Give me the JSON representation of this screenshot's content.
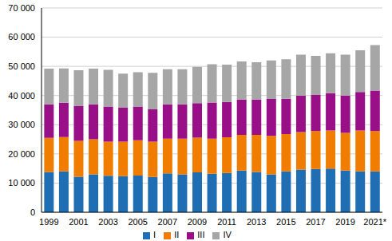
{
  "chart_data": {
    "type": "bar",
    "stacked": true,
    "grid": true,
    "legend": "bottom",
    "categories": [
      "1999",
      null,
      "2001",
      null,
      "2003",
      null,
      "2005",
      null,
      "2007",
      null,
      "2009",
      null,
      "2011",
      null,
      "2013",
      null,
      "2015",
      null,
      "2017",
      null,
      "2019",
      null,
      "2021*"
    ],
    "series": [
      {
        "name": "I",
        "color": "#1f6eb4",
        "values": [
          13800,
          14000,
          12200,
          13000,
          12500,
          12400,
          12600,
          12100,
          13300,
          13000,
          13700,
          13200,
          13500,
          14300,
          13800,
          13000,
          14000,
          14600,
          14800,
          15000,
          14300,
          14000,
          14000
        ]
      },
      {
        "name": "II",
        "color": "#f07d00",
        "values": [
          11700,
          11800,
          12300,
          12000,
          11700,
          11800,
          12100,
          12100,
          11900,
          12200,
          11900,
          12000,
          12200,
          12200,
          12700,
          13200,
          12800,
          12900,
          13000,
          13000,
          12900,
          14000,
          13800
        ]
      },
      {
        "name": "III",
        "color": "#990f87",
        "values": [
          11500,
          11700,
          11900,
          12000,
          12000,
          11600,
          11500,
          11100,
          11800,
          11800,
          11800,
          12400,
          12100,
          12100,
          12100,
          12600,
          12100,
          12500,
          12400,
          12800,
          12800,
          13200,
          13900
        ]
      },
      {
        "name": "IV",
        "color": "#a6a6a6",
        "values": [
          12200,
          11800,
          12300,
          12200,
          12600,
          11700,
          11800,
          12500,
          12000,
          12000,
          12400,
          13100,
          12800,
          13100,
          12800,
          13200,
          13500,
          14000,
          13400,
          13700,
          14000,
          14300,
          15600
        ]
      }
    ],
    "ylim": [
      0,
      70000
    ],
    "yticks": [
      0,
      {
        "value": 10000,
        "label": "10 000"
      },
      {
        "value": 20000,
        "label": "20 000"
      },
      {
        "value": 30000,
        "label": "30 000"
      },
      {
        "value": 40000,
        "label": "40 000"
      },
      {
        "value": 50000,
        "label": "50 000"
      },
      {
        "value": 60000,
        "label": "60 000"
      },
      {
        "value": 70000,
        "label": "70 000"
      }
    ]
  }
}
